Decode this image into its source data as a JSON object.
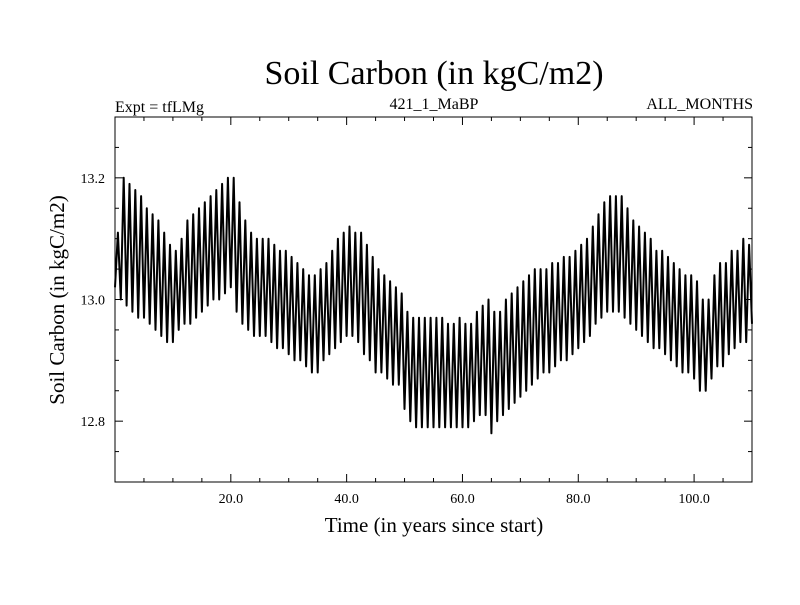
{
  "colors": {
    "line": "#000000",
    "background": "#ffffff",
    "axis": "#000000"
  },
  "chart_data": {
    "type": "line",
    "title": "Soil Carbon (in kgC/m2)",
    "subtitle_left": "Expt = tfLMg",
    "subtitle_center": "421_1_MaBP",
    "subtitle_right": "ALL_MONTHS",
    "xlabel": "Time (in years since start)",
    "ylabel": "Soil Carbon (in kgC/m2)",
    "xlim": [
      0,
      110
    ],
    "ylim": [
      12.7,
      13.3
    ],
    "x_ticks": [
      20,
      40,
      60,
      80,
      100
    ],
    "x_tick_labels": [
      "20.0",
      "40.0",
      "60.0",
      "80.0",
      "100.0"
    ],
    "x_minor_step": 5,
    "y_ticks": [
      12.8,
      13.0,
      13.2
    ],
    "y_tick_labels": [
      "12.8",
      "13.0",
      "13.2"
    ],
    "y_minor_step": 0.05,
    "grid": false,
    "series": [
      {
        "name": "Soil Carbon",
        "sampling": "one maximum and one minimum per model year (annual cycle)",
        "years": [
          0,
          1,
          2,
          3,
          4,
          5,
          6,
          7,
          8,
          9,
          10,
          11,
          12,
          13,
          14,
          15,
          16,
          17,
          18,
          19,
          20,
          21,
          22,
          23,
          24,
          25,
          26,
          27,
          28,
          29,
          30,
          31,
          32,
          33,
          34,
          35,
          36,
          37,
          38,
          39,
          40,
          41,
          42,
          43,
          44,
          45,
          46,
          47,
          48,
          49,
          50,
          51,
          52,
          53,
          54,
          55,
          56,
          57,
          58,
          59,
          60,
          61,
          62,
          63,
          64,
          65,
          66,
          67,
          68,
          69,
          70,
          71,
          72,
          73,
          74,
          75,
          76,
          77,
          78,
          79,
          80,
          81,
          82,
          83,
          84,
          85,
          86,
          87,
          88,
          89,
          90,
          91,
          92,
          93,
          94,
          95,
          96,
          97,
          98,
          99,
          100,
          101,
          102,
          103,
          104,
          105,
          106,
          107,
          108,
          109,
          110
        ],
        "annual_max": [
          13.11,
          13.2,
          13.19,
          13.18,
          13.17,
          13.15,
          13.14,
          13.13,
          13.11,
          13.09,
          13.08,
          13.1,
          13.13,
          13.14,
          13.15,
          13.16,
          13.17,
          13.18,
          13.19,
          13.2,
          13.2,
          13.16,
          13.13,
          13.11,
          13.1,
          13.1,
          13.1,
          13.09,
          13.08,
          13.08,
          13.07,
          13.06,
          13.05,
          13.04,
          13.04,
          13.05,
          13.06,
          13.08,
          13.1,
          13.11,
          13.12,
          13.11,
          13.11,
          13.09,
          13.07,
          13.05,
          13.04,
          13.03,
          13.02,
          13.01,
          12.98,
          12.97,
          12.97,
          12.97,
          12.97,
          12.97,
          12.97,
          12.96,
          12.96,
          12.97,
          12.96,
          12.96,
          12.98,
          12.99,
          13.0,
          12.98,
          12.98,
          13.0,
          13.01,
          13.02,
          13.03,
          13.04,
          13.05,
          13.05,
          13.05,
          13.06,
          13.06,
          13.07,
          13.07,
          13.08,
          13.09,
          13.1,
          13.12,
          13.14,
          13.16,
          13.17,
          13.17,
          13.17,
          13.15,
          13.13,
          13.12,
          13.11,
          13.1,
          13.08,
          13.08,
          13.07,
          13.06,
          13.05,
          13.04,
          13.04,
          13.03,
          13.0,
          13.0,
          13.04,
          13.06,
          13.06,
          13.08,
          13.08,
          13.1,
          13.09,
          13.1
        ],
        "annual_min": [
          13.02,
          13.0,
          12.99,
          12.98,
          12.97,
          12.97,
          12.96,
          12.95,
          12.94,
          12.93,
          12.93,
          12.95,
          12.96,
          12.96,
          12.97,
          12.98,
          12.99,
          13.0,
          13.0,
          13.01,
          13.02,
          12.98,
          12.96,
          12.95,
          12.94,
          12.94,
          12.94,
          12.93,
          12.92,
          12.92,
          12.91,
          12.9,
          12.9,
          12.89,
          12.88,
          12.88,
          12.9,
          12.91,
          12.92,
          12.93,
          12.94,
          12.94,
          12.93,
          12.91,
          12.9,
          12.88,
          12.88,
          12.87,
          12.86,
          12.86,
          12.82,
          12.8,
          12.79,
          12.79,
          12.79,
          12.79,
          12.79,
          12.79,
          12.79,
          12.79,
          12.79,
          12.79,
          12.8,
          12.81,
          12.81,
          12.78,
          12.8,
          12.81,
          12.82,
          12.83,
          12.84,
          12.85,
          12.86,
          12.87,
          12.88,
          12.88,
          12.89,
          12.9,
          12.9,
          12.91,
          12.92,
          12.93,
          12.94,
          12.96,
          12.97,
          12.98,
          12.98,
          12.98,
          12.97,
          12.96,
          12.95,
          12.94,
          12.93,
          12.92,
          12.92,
          12.91,
          12.9,
          12.89,
          12.88,
          12.88,
          12.87,
          12.85,
          12.85,
          12.87,
          12.89,
          12.89,
          12.91,
          12.92,
          12.93,
          12.93,
          12.96
        ]
      }
    ]
  }
}
